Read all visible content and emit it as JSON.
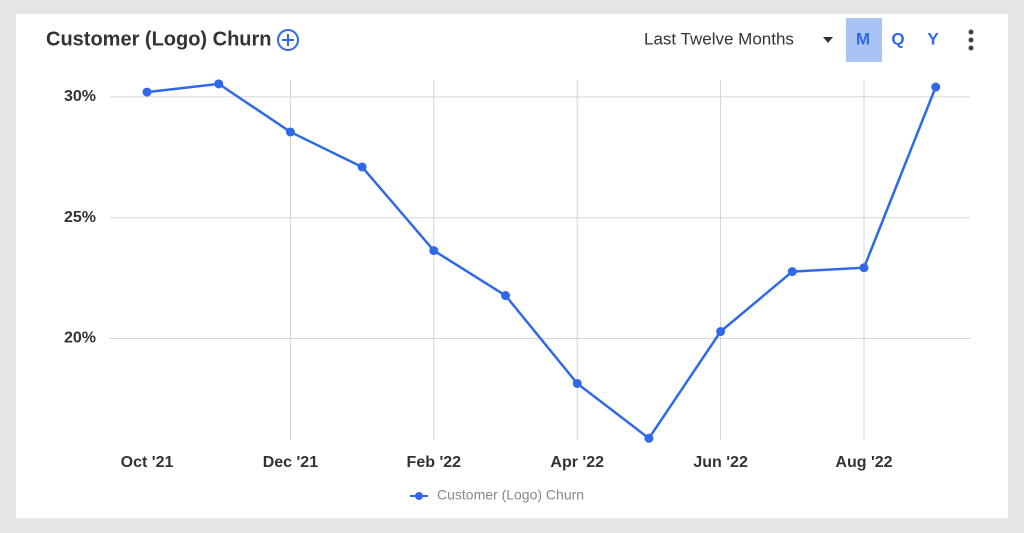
{
  "controls": {
    "period": "Last Twelve Months",
    "granularity": [
      "M",
      "Q",
      "Y"
    ],
    "selected": 0
  },
  "chart_data": {
    "type": "line",
    "title": "Customer (Logo) Churn",
    "categories": [
      "Oct '21",
      null,
      "Dec '21",
      null,
      "Feb '22",
      null,
      "Apr '22",
      null,
      "Jun '22",
      null,
      "Aug '22",
      null
    ],
    "series": [
      {
        "name": "Customer (Logo) Churn",
        "color": "#2f68e8",
        "values": [
          30.2,
          30.54,
          28.55,
          27.1,
          23.64,
          21.78,
          18.14,
          15.87,
          20.29,
          22.77,
          22.93,
          30.41
        ]
      }
    ],
    "ylim": [
      15.8,
      30.7
    ],
    "yticks": [
      {
        "value": 20,
        "label": "20%"
      },
      {
        "value": 25,
        "label": "25%"
      },
      {
        "value": 30,
        "label": "30%"
      }
    ],
    "grid": true,
    "legend": "bottom"
  }
}
